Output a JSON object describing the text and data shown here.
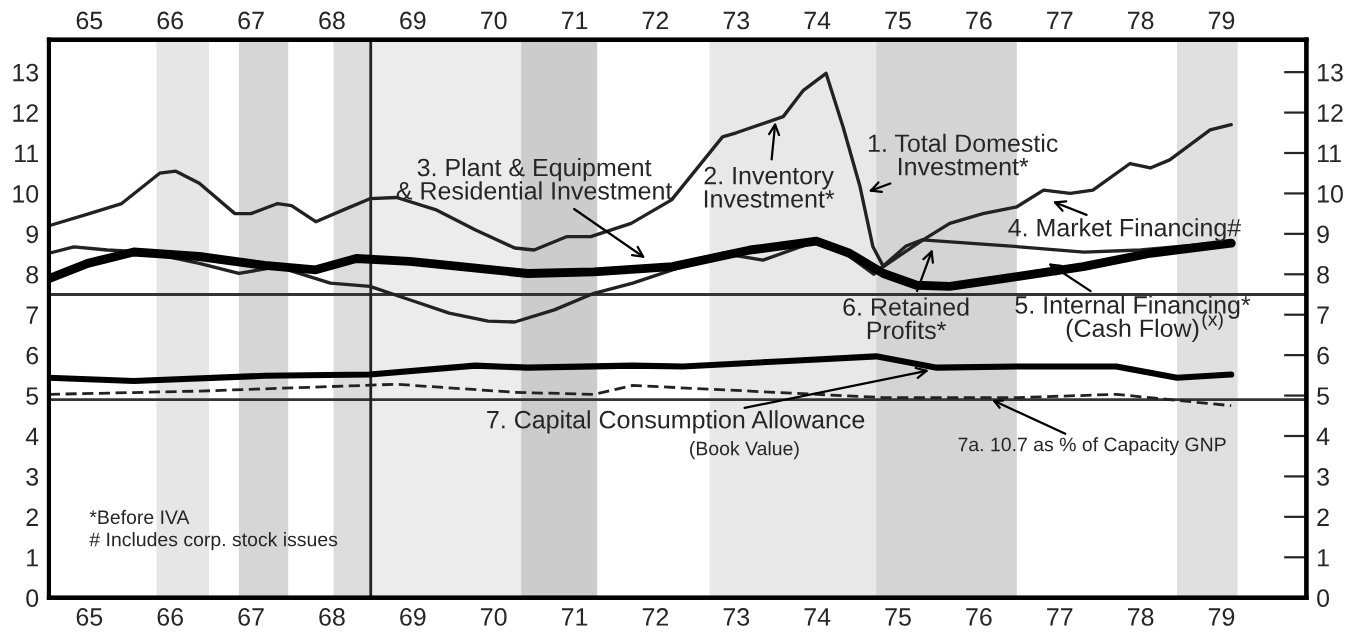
{
  "chart_data": {
    "type": "line",
    "xlim": [
      65.0,
      80.55
    ],
    "xticks": [
      {
        "value": 65.5,
        "label": "65"
      },
      {
        "value": 66.5,
        "label": "66"
      },
      {
        "value": 67.5,
        "label": "67"
      },
      {
        "value": 68.5,
        "label": "68"
      },
      {
        "value": 69.5,
        "label": "69"
      },
      {
        "value": 70.5,
        "label": "70"
      },
      {
        "value": 71.5,
        "label": "71"
      },
      {
        "value": 72.5,
        "label": "72"
      },
      {
        "value": 73.5,
        "label": "73"
      },
      {
        "value": 74.5,
        "label": "74"
      },
      {
        "value": 75.5,
        "label": "75"
      },
      {
        "value": 76.5,
        "label": "76"
      },
      {
        "value": 77.5,
        "label": "77"
      },
      {
        "value": 78.5,
        "label": "78"
      },
      {
        "value": 79.5,
        "label": "79"
      }
    ],
    "x2lim": [
      65.0,
      80.55
    ],
    "x2ticks": [
      {
        "value": 65.5,
        "label": "65"
      },
      {
        "value": 66.5,
        "label": "66"
      },
      {
        "value": 67.5,
        "label": "67"
      },
      {
        "value": 68.5,
        "label": "68"
      },
      {
        "value": 69.5,
        "label": "69"
      },
      {
        "value": 70.5,
        "label": "70"
      },
      {
        "value": 71.5,
        "label": "71"
      },
      {
        "value": 72.5,
        "label": "72"
      },
      {
        "value": 73.5,
        "label": "73"
      },
      {
        "value": 74.5,
        "label": "74"
      },
      {
        "value": 75.5,
        "label": "75"
      },
      {
        "value": 76.5,
        "label": "76"
      },
      {
        "value": 77.5,
        "label": "77"
      },
      {
        "value": 78.5,
        "label": "78"
      },
      {
        "value": 79.5,
        "label": "79"
      }
    ],
    "ylim": [
      0,
      13.8
    ],
    "yticks": [
      0,
      1,
      2,
      3,
      4,
      5,
      6,
      7,
      8,
      9,
      10,
      11,
      12,
      13
    ],
    "y2lim": [
      0,
      13.8
    ],
    "y2ticks": [
      0,
      1,
      2,
      3,
      4,
      5,
      6,
      7,
      8,
      9,
      10,
      11,
      12,
      13
    ],
    "grid": false,
    "series": [
      {
        "color": "#222222",
        "line_style": "solid",
        "x": [
          65.0,
          65.5,
          65.9,
          66.37,
          66.57,
          66.86,
          67.3,
          67.5,
          67.83,
          68.0,
          68.3,
          68.65,
          68.97,
          69.3,
          69.78,
          70.27,
          70.76,
          71.0,
          71.4,
          71.7,
          72.2,
          72.7,
          73.33,
          73.5,
          74.08,
          74.33,
          74.61,
          74.82,
          75.03,
          75.19,
          75.32,
          75.56,
          75.81,
          76.14,
          76.55,
          76.97,
          77.3,
          77.63,
          77.91,
          78.37,
          78.62,
          78.86,
          79.36,
          79.62
        ],
        "values": [
          9.2,
          9.5,
          9.75,
          10.5,
          10.55,
          10.25,
          9.5,
          9.5,
          9.75,
          9.7,
          9.3,
          9.6,
          9.87,
          9.9,
          9.6,
          9.1,
          8.65,
          8.6,
          8.93,
          8.93,
          9.26,
          9.84,
          11.4,
          11.5,
          11.9,
          12.55,
          12.97,
          11.65,
          10.17,
          8.68,
          8.19,
          8.52,
          8.85,
          9.26,
          9.5,
          9.67,
          10.08,
          10.0,
          10.08,
          10.74,
          10.63,
          10.83,
          11.57,
          11.7
        ]
      },
      {
        "color": "#222222",
        "line_style": "solid",
        "x": [
          65.0,
          65.31,
          65.72,
          66.2,
          66.86,
          67.35,
          67.83,
          68.48,
          68.97,
          69.46,
          69.95,
          70.43,
          70.76,
          71.25,
          71.74,
          72.22,
          72.71,
          73.33,
          73.83,
          74.49,
          74.74,
          75.2,
          75.6,
          75.8,
          76.5,
          77.0,
          77.8,
          78.5,
          79.62
        ],
        "values": [
          8.52,
          8.68,
          8.6,
          8.55,
          8.27,
          8.02,
          8.19,
          7.78,
          7.7,
          7.37,
          7.04,
          6.84,
          6.82,
          7.12,
          7.53,
          7.78,
          8.11,
          8.52,
          8.35,
          8.82,
          8.68,
          8.0,
          8.7,
          8.85,
          8.75,
          8.68,
          8.55,
          8.6,
          8.8
        ]
      },
      {
        "color": "#000000",
        "line_style": "solid",
        "x": [
          65.0,
          65.48,
          66.05,
          66.86,
          67.67,
          68.3,
          68.8,
          69.46,
          70.1,
          70.92,
          71.74,
          72.71,
          73.67,
          74.49,
          74.9,
          75.32,
          75.73,
          76.14,
          76.97,
          77.79,
          78.62,
          79.62
        ],
        "values": [
          7.89,
          8.27,
          8.55,
          8.44,
          8.22,
          8.11,
          8.39,
          8.32,
          8.19,
          8.02,
          8.06,
          8.19,
          8.6,
          8.82,
          8.52,
          8.02,
          7.73,
          7.7,
          7.94,
          8.19,
          8.52,
          8.77
        ]
      },
      {
        "color": "#000000",
        "line_style": "solid",
        "x": [
          65.0,
          66.05,
          67.67,
          68.97,
          70.27,
          70.92,
          72.22,
          72.84,
          74.08,
          75.23,
          75.98,
          76.97,
          78.2,
          78.95,
          79.62
        ],
        "values": [
          5.44,
          5.36,
          5.49,
          5.52,
          5.74,
          5.69,
          5.74,
          5.72,
          5.85,
          5.97,
          5.69,
          5.72,
          5.72,
          5.44,
          5.52
        ]
      },
      {
        "color": "#222222",
        "line_style": "dashed",
        "x": [
          65.0,
          66.86,
          69.3,
          70.76,
          71.74,
          72.22,
          73.67,
          75.32,
          76.97,
          78.2,
          79.62
        ],
        "values": [
          5.03,
          5.11,
          5.28,
          5.08,
          5.03,
          5.25,
          5.11,
          4.95,
          4.95,
          5.03,
          4.75
        ]
      }
    ],
    "ref_lines": [
      {
        "axis": "y",
        "value": 7.5,
        "color": "#333333"
      },
      {
        "axis": "y",
        "value": 4.9,
        "color": "#333333"
      },
      {
        "axis": "x",
        "value": 68.98,
        "color": "#222222"
      }
    ],
    "bands": [
      {
        "axis": "x",
        "from": 66.33,
        "to": 66.98,
        "color": "#e6e6e6"
      },
      {
        "axis": "x",
        "from": 67.35,
        "to": 67.96,
        "color": "#d6d6d6"
      },
      {
        "axis": "x",
        "from": 68.52,
        "to": 68.98,
        "color": "#dcdcdc"
      },
      {
        "axis": "x",
        "from": 68.98,
        "to": 70.84,
        "color": "#ececec"
      },
      {
        "axis": "x",
        "from": 70.84,
        "to": 71.78,
        "color": "#cccccc"
      },
      {
        "axis": "x",
        "from": 73.17,
        "to": 75.23,
        "color": "#e8e8e8"
      },
      {
        "axis": "x",
        "from": 75.23,
        "to": 76.97,
        "color": "#d4d4d4"
      },
      {
        "axis": "x",
        "from": 78.95,
        "to": 79.7,
        "color": "#e0e0e0"
      }
    ],
    "annotations": [
      {
        "text": "3. Plant & Equipment\n& Residential Investment",
        "x": 72.43,
        "y": 8.32
      },
      {
        "text": "1. Total Domestic\nInvestment*",
        "x": 75.07,
        "y": 10.0
      },
      {
        "text": "2. Inventory\nInvestment*",
        "x": 73.99,
        "y": 11.9
      },
      {
        "text": "4. Market Financing#",
        "x": 77.35,
        "y": 9.85
      },
      {
        "text": "5. Internal Financing*\n(Cash Flow)",
        "x": 77.3,
        "y": 8.35
      },
      {
        "text": "6. Retained\nProfits*",
        "x": 75.95,
        "y": 8.75
      },
      {
        "text": "7. Capital Consumption Allowance",
        "x": 75.95,
        "y": 5.65
      },
      {
        "text": "7a. 10.7 as % of Capacity GNP",
        "x": 76.6,
        "y": 4.95
      },
      "(x)",
      "(Book Value)",
      "*Before IVA",
      "# Includes corp. stock issues"
    ]
  }
}
